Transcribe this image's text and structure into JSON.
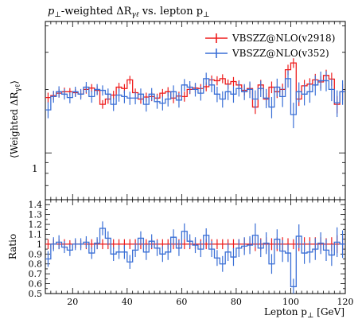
{
  "chart_data": [
    {
      "type": "line",
      "title": "p⊥-weighted ΔRγℓ vs. lepton p⊥",
      "title_parts": {
        "p": "p",
        "sub1": "⊥",
        "mid": "-weighted ΔR",
        "sub2": "γℓ",
        "end": " vs. lepton p",
        "sub3": "⊥"
      },
      "ylabel": "⟨Weighted   ΔRγℓ⟩",
      "ylabel_parts": {
        "open": "⟨Weighted   ΔR",
        "sub": "γℓ",
        "close": "⟩"
      },
      "y_scale": "log",
      "ytick_labels": [
        {
          "value": 1,
          "label": "1"
        }
      ],
      "xlim": [
        10,
        120
      ],
      "legend_position": "top-right",
      "x_edges": [
        10,
        12,
        14,
        16,
        18,
        20,
        22,
        24,
        26,
        28,
        30,
        32,
        34,
        36,
        38,
        40,
        42,
        44,
        46,
        48,
        50,
        52,
        54,
        56,
        58,
        60,
        62,
        64,
        66,
        68,
        70,
        72,
        74,
        76,
        78,
        80,
        82,
        84,
        86,
        88,
        90,
        92,
        94,
        96,
        98,
        100,
        102,
        104,
        106,
        108,
        110,
        112,
        114,
        116,
        118,
        120
      ],
      "series": [
        {
          "name": "VBSZZ@NLO(v2918)",
          "color": "#ee1c1c",
          "values": [
            1.83,
            1.87,
            1.92,
            1.95,
            1.95,
            1.93,
            1.9,
            2.0,
            2.03,
            1.98,
            1.7,
            1.8,
            1.88,
            2.05,
            2.02,
            2.22,
            1.93,
            1.8,
            1.84,
            1.85,
            1.82,
            1.92,
            1.95,
            1.82,
            1.86,
            1.85,
            2.0,
            2.03,
            2.02,
            2.06,
            2.22,
            2.2,
            2.25,
            2.12,
            2.18,
            2.1,
            1.98,
            2.02,
            1.65,
            2.1,
            1.8,
            2.05,
            1.95,
            2.0,
            2.48,
            2.67,
            1.8,
            2.08,
            2.12,
            2.22,
            2.17,
            2.33,
            2.24,
            1.7,
            1.95
          ],
          "errors": [
            0.1,
            0.09,
            0.09,
            0.09,
            0.08,
            0.08,
            0.08,
            0.09,
            0.09,
            0.09,
            0.08,
            0.09,
            0.09,
            0.1,
            0.1,
            0.1,
            0.09,
            0.09,
            0.09,
            0.09,
            0.09,
            0.09,
            0.1,
            0.1,
            0.09,
            0.1,
            0.1,
            0.1,
            0.1,
            0.1,
            0.11,
            0.11,
            0.11,
            0.11,
            0.11,
            0.11,
            0.11,
            0.12,
            0.12,
            0.12,
            0.12,
            0.13,
            0.13,
            0.13,
            0.14,
            0.14,
            0.13,
            0.14,
            0.14,
            0.15,
            0.15,
            0.15,
            0.16,
            0.16,
            0.17
          ]
        },
        {
          "name": "VBSZZ@NLO(v352)",
          "color": "#3a6fd6",
          "values": [
            1.6,
            1.85,
            1.95,
            1.9,
            1.83,
            1.95,
            1.9,
            2.05,
            1.85,
            2.0,
            1.98,
            1.9,
            1.7,
            1.88,
            1.85,
            1.82,
            1.82,
            1.9,
            1.7,
            1.9,
            1.75,
            1.72,
            1.8,
            1.95,
            1.78,
            2.1,
            2.05,
            2.0,
            1.92,
            2.25,
            2.1,
            1.9,
            1.8,
            1.95,
            1.9,
            2.02,
            1.95,
            2.0,
            1.8,
            2.02,
            1.82,
            1.65,
            2.05,
            1.85,
            2.25,
            1.52,
            1.95,
            1.9,
            1.95,
            2.1,
            2.2,
            2.2,
            2.0,
            1.73,
            1.95
          ],
          "errors": [
            0.14,
            0.12,
            0.12,
            0.11,
            0.11,
            0.11,
            0.11,
            0.12,
            0.12,
            0.12,
            0.11,
            0.12,
            0.12,
            0.13,
            0.13,
            0.13,
            0.12,
            0.12,
            0.13,
            0.13,
            0.13,
            0.13,
            0.14,
            0.14,
            0.14,
            0.14,
            0.14,
            0.15,
            0.15,
            0.15,
            0.16,
            0.16,
            0.16,
            0.17,
            0.17,
            0.17,
            0.17,
            0.18,
            0.18,
            0.18,
            0.19,
            0.19,
            0.2,
            0.2,
            0.21,
            0.21,
            0.21,
            0.22,
            0.22,
            0.23,
            0.23,
            0.24,
            0.24,
            0.25,
            0.26
          ]
        }
      ]
    },
    {
      "type": "line",
      "xlabel": "Lepton p⊥ [GeV]",
      "xlabel_parts": {
        "pre": "Lepton p",
        "sub": "⊥",
        "post": " [GeV]"
      },
      "ylabel": "Ratio",
      "xlim": [
        10,
        120
      ],
      "ylim": [
        0.5,
        1.45
      ],
      "xticks": [
        20,
        40,
        60,
        80,
        100,
        120
      ],
      "yticks": [
        0.5,
        0.6,
        0.7,
        0.8,
        0.9,
        1,
        1.1,
        1.2,
        1.3,
        1.4
      ],
      "x_edges": [
        10,
        12,
        14,
        16,
        18,
        20,
        22,
        24,
        26,
        28,
        30,
        32,
        34,
        36,
        38,
        40,
        42,
        44,
        46,
        48,
        50,
        52,
        54,
        56,
        58,
        60,
        62,
        64,
        66,
        68,
        70,
        72,
        74,
        76,
        78,
        80,
        82,
        84,
        86,
        88,
        90,
        92,
        94,
        96,
        98,
        100,
        102,
        104,
        106,
        108,
        110,
        112,
        114,
        116,
        118,
        120
      ],
      "series": [
        {
          "name": "VBSZZ@NLO(v2918)",
          "color": "#ee1c1c",
          "values": [
            1,
            1,
            1,
            1,
            1,
            1,
            1,
            1,
            1,
            1,
            1,
            1,
            1,
            1,
            1,
            1,
            1,
            1,
            1,
            1,
            1,
            1,
            1,
            1,
            1,
            1,
            1,
            1,
            1,
            1,
            1,
            1,
            1,
            1,
            1,
            1,
            1,
            1,
            1,
            1,
            1,
            1,
            1,
            1,
            1,
            1,
            1,
            1,
            1,
            1,
            1,
            1,
            1,
            1,
            1
          ],
          "errors": [
            0.05,
            0.05,
            0.05,
            0.05,
            0.04,
            0.04,
            0.04,
            0.05,
            0.05,
            0.05,
            0.05,
            0.05,
            0.05,
            0.05,
            0.05,
            0.05,
            0.05,
            0.05,
            0.05,
            0.05,
            0.05,
            0.05,
            0.05,
            0.05,
            0.05,
            0.05,
            0.05,
            0.05,
            0.05,
            0.05,
            0.05,
            0.05,
            0.05,
            0.05,
            0.05,
            0.05,
            0.06,
            0.06,
            0.07,
            0.06,
            0.07,
            0.06,
            0.07,
            0.07,
            0.06,
            0.05,
            0.07,
            0.07,
            0.07,
            0.07,
            0.07,
            0.06,
            0.07,
            0.09,
            0.09
          ]
        },
        {
          "name": "VBSZZ@NLO(v352)",
          "color": "#3a6fd6",
          "values": [
            0.85,
            1.0,
            1.02,
            0.97,
            0.94,
            1.0,
            1.0,
            1.02,
            0.91,
            1.01,
            1.16,
            1.06,
            0.9,
            0.92,
            0.92,
            0.82,
            0.94,
            1.06,
            0.92,
            1.03,
            0.96,
            0.9,
            0.92,
            1.07,
            0.96,
            1.13,
            1.03,
            0.99,
            0.95,
            1.09,
            0.95,
            0.86,
            0.8,
            0.92,
            0.87,
            0.96,
            0.98,
            0.99,
            1.09,
            0.96,
            1.01,
            0.8,
            1.05,
            0.93,
            0.91,
            0.57,
            1.08,
            0.91,
            0.92,
            0.95,
            1.01,
            0.94,
            0.89,
            1.02,
            1.0
          ],
          "errors": [
            0.08,
            0.07,
            0.07,
            0.06,
            0.06,
            0.06,
            0.06,
            0.06,
            0.06,
            0.06,
            0.07,
            0.07,
            0.07,
            0.07,
            0.07,
            0.07,
            0.07,
            0.07,
            0.08,
            0.07,
            0.08,
            0.08,
            0.08,
            0.08,
            0.08,
            0.08,
            0.07,
            0.08,
            0.08,
            0.07,
            0.08,
            0.08,
            0.08,
            0.09,
            0.09,
            0.09,
            0.09,
            0.09,
            0.12,
            0.09,
            0.11,
            0.1,
            0.1,
            0.11,
            0.09,
            0.08,
            0.12,
            0.11,
            0.11,
            0.11,
            0.11,
            0.11,
            0.11,
            0.15,
            0.14
          ]
        }
      ]
    }
  ]
}
